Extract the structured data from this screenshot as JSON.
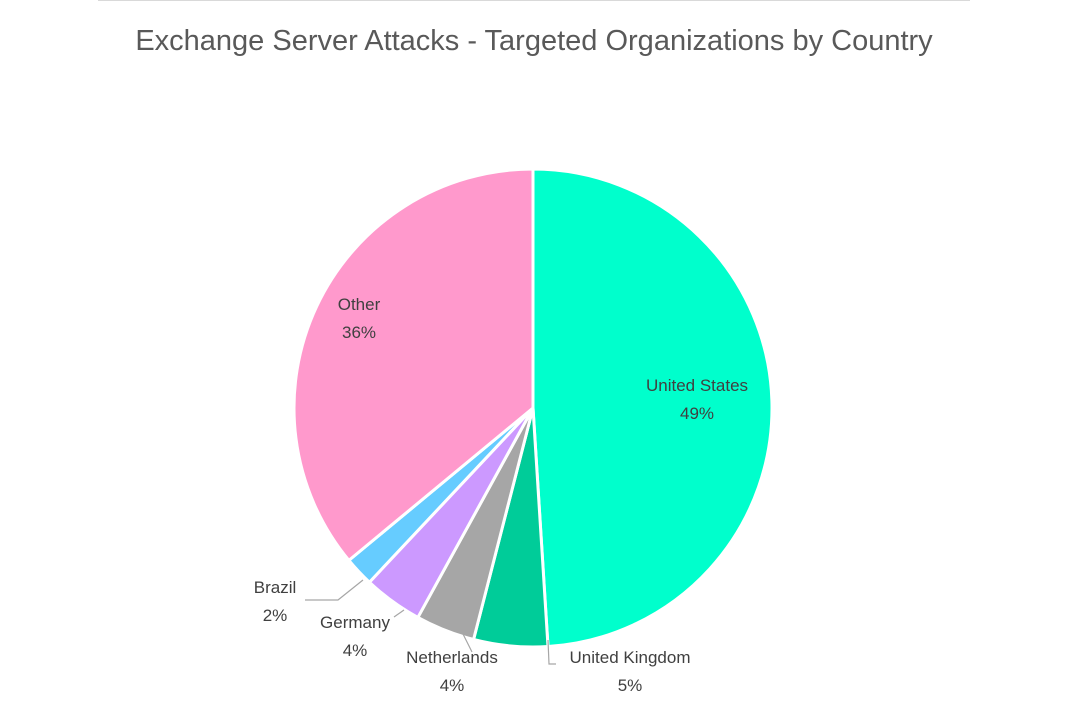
{
  "chart_data": {
    "type": "pie",
    "title": "Exchange Server Attacks - Targeted Organizations by Country",
    "start_angle_deg": 0,
    "direction": "clockwise",
    "slices": [
      {
        "label": "United States",
        "value": 49,
        "value_label": "49%",
        "color": "#00ffcc"
      },
      {
        "label": "United Kingdom",
        "value": 5,
        "value_label": "5%",
        "color": "#00cc99"
      },
      {
        "label": "Netherlands",
        "value": 4,
        "value_label": "4%",
        "color": "#a6a6a6"
      },
      {
        "label": "Germany",
        "value": 4,
        "value_label": "4%",
        "color": "#cc99ff"
      },
      {
        "label": "Brazil",
        "value": 2,
        "value_label": "2%",
        "color": "#66ccff"
      },
      {
        "label": "Other",
        "value": 36,
        "value_label": "36%",
        "color": "#ff99cc"
      }
    ],
    "legend": "none"
  }
}
